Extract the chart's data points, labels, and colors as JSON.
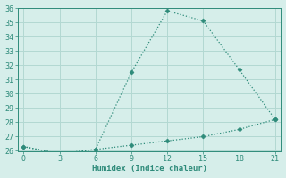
{
  "xlabel": "Humidex (Indice chaleur)",
  "line1_x": [
    0,
    3,
    6,
    9,
    12,
    15,
    18,
    21
  ],
  "line1_y": [
    26.3,
    25.8,
    26.1,
    31.5,
    35.8,
    35.1,
    31.7,
    28.2
  ],
  "line2_x": [
    0,
    3,
    6,
    9,
    12,
    15,
    18,
    21
  ],
  "line2_y": [
    26.3,
    25.8,
    26.1,
    26.4,
    26.7,
    27.0,
    27.5,
    28.2
  ],
  "line_color": "#2e8b7a",
  "bg_color": "#d6eeea",
  "grid_color": "#b2d8d2",
  "xlim": [
    -0.5,
    21.5
  ],
  "ylim": [
    26,
    36
  ],
  "xticks": [
    0,
    3,
    6,
    9,
    12,
    15,
    18,
    21
  ],
  "yticks": [
    26,
    27,
    28,
    29,
    30,
    31,
    32,
    33,
    34,
    35,
    36
  ]
}
